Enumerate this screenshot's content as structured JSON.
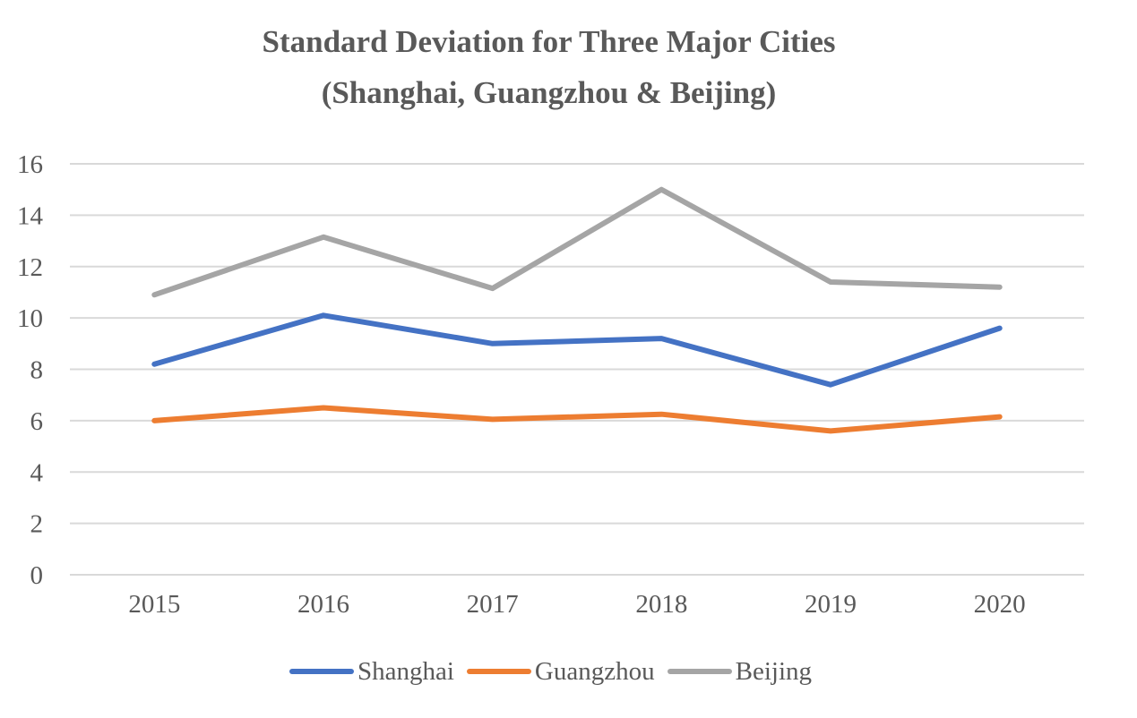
{
  "chart_data": {
    "type": "line",
    "title_line1": "Standard Deviation for Three Major Cities",
    "title_line2": "(Shanghai, Guangzhou & Beijing)",
    "categories": [
      "2015",
      "2016",
      "2017",
      "2018",
      "2019",
      "2020"
    ],
    "ylim": [
      0,
      16
    ],
    "yticks": [
      0,
      2,
      4,
      6,
      8,
      10,
      12,
      14,
      16
    ],
    "grid": true,
    "legend_position": "bottom",
    "series": [
      {
        "name": "Shanghai",
        "color": "#4472C4",
        "values": [
          8.2,
          10.1,
          9.0,
          9.2,
          7.4,
          9.6
        ]
      },
      {
        "name": "Guangzhou",
        "color": "#ED7D31",
        "values": [
          6.0,
          6.5,
          6.05,
          6.25,
          5.6,
          6.15
        ]
      },
      {
        "name": "Beijing",
        "color": "#A5A5A5",
        "values": [
          10.9,
          13.15,
          11.15,
          15.0,
          11.4,
          11.2
        ]
      }
    ]
  }
}
